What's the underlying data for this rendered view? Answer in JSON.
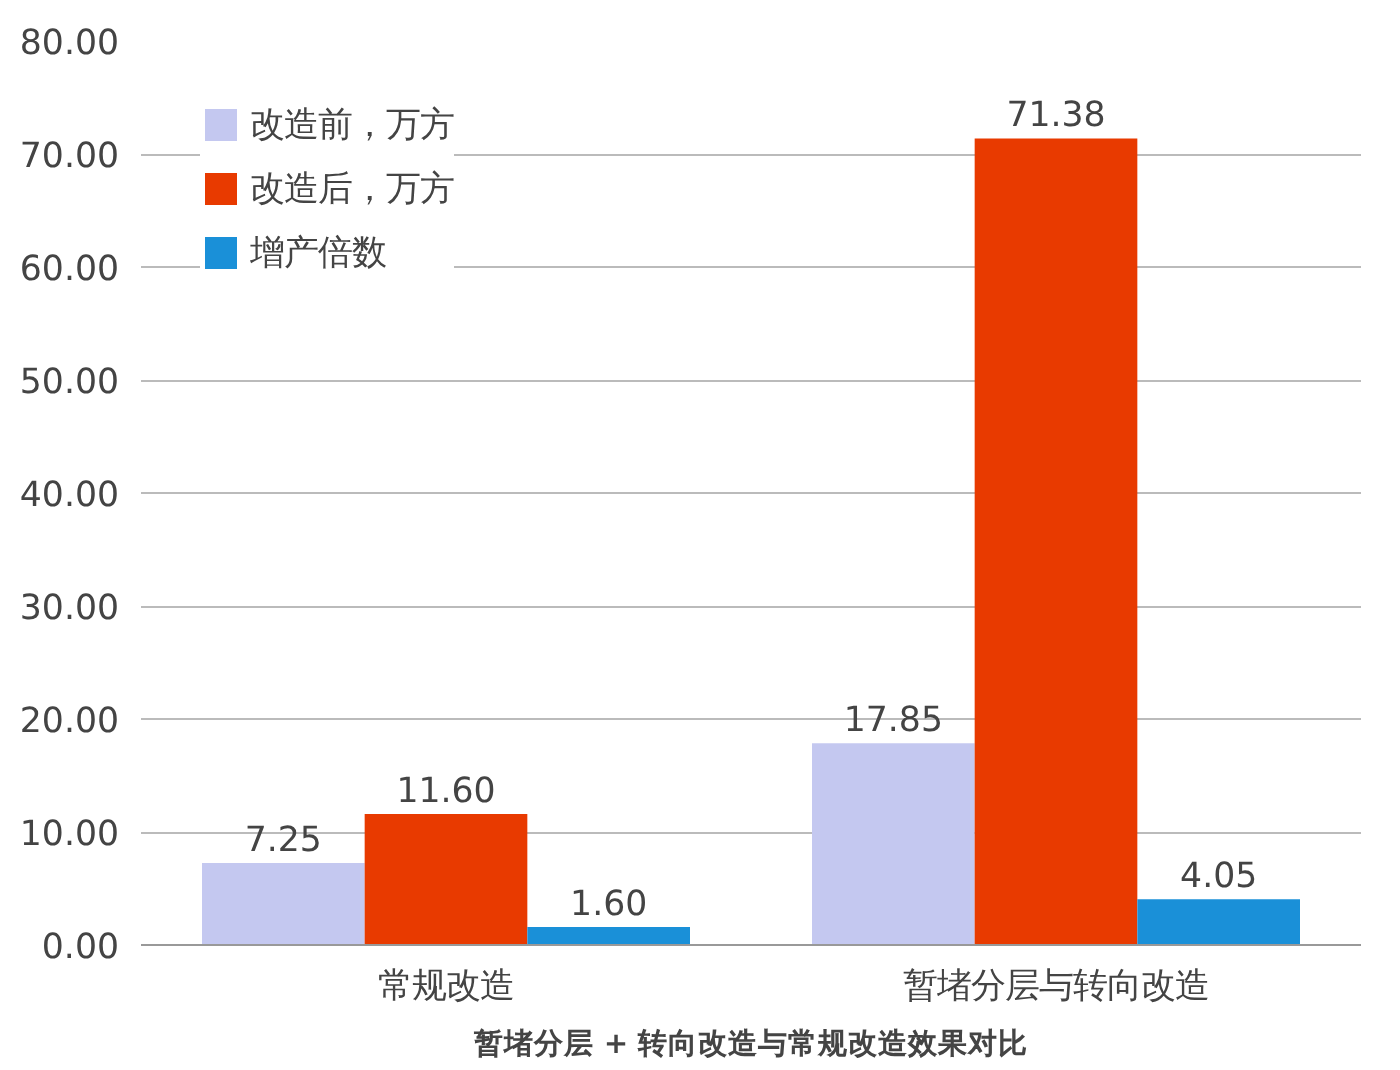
{
  "chart_data": {
    "type": "bar",
    "categories": [
      "常规改造",
      "暂堵分层与转向改造"
    ],
    "series": [
      {
        "name": "改造前，万方",
        "color": "#c4c8f0",
        "values": [
          7.25,
          17.85
        ]
      },
      {
        "name": "改造后，万方",
        "color": "#e83a00",
        "values": [
          11.6,
          71.38
        ]
      },
      {
        "name": "增产倍数",
        "color": "#1a90d8",
        "values": [
          1.6,
          4.05
        ]
      }
    ],
    "value_labels": [
      [
        "7.25",
        "17.85"
      ],
      [
        "11.60",
        "71.38"
      ],
      [
        "1.60",
        "4.05"
      ]
    ],
    "ylim": [
      0,
      80
    ],
    "yticks": [
      {
        "value": 0,
        "label": "0.00"
      },
      {
        "value": 10,
        "label": "10.00"
      },
      {
        "value": 20,
        "label": "20.00"
      },
      {
        "value": 30,
        "label": "30.00"
      },
      {
        "value": 40,
        "label": "40.00"
      },
      {
        "value": 50,
        "label": "50.00"
      },
      {
        "value": 60,
        "label": "60.00"
      },
      {
        "value": 70,
        "label": "70.00"
      },
      {
        "value": 80,
        "label": "80.00"
      }
    ],
    "grid": "y",
    "legend": "top left",
    "annotations": [
      "暂堵分层 + 转向改造与常规改造效果对比"
    ]
  }
}
